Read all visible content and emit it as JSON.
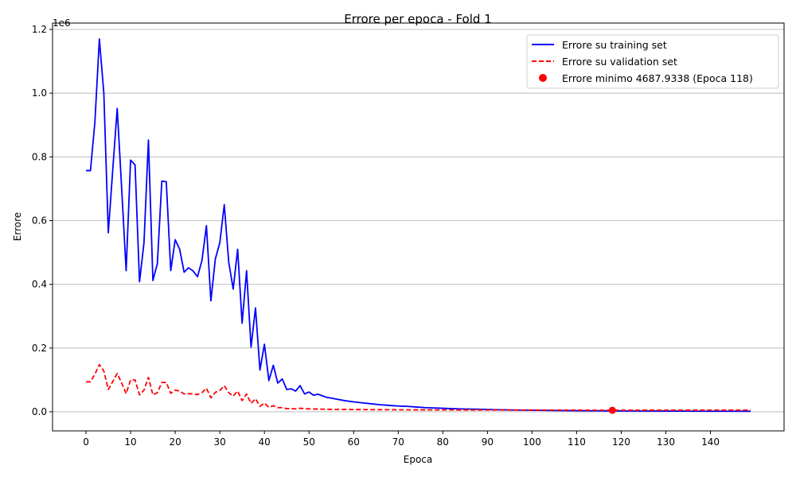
{
  "chart_data": {
    "type": "line",
    "title": "Errore per epoca - Fold 1",
    "xlabel": "Epoca",
    "ylabel": "Errore",
    "y_offset_label": "1e6",
    "xlim": [
      -7.5,
      156.5
    ],
    "ylim": [
      -0.06,
      1.22
    ],
    "y_scale_factor": 1000000,
    "x_ticks": [
      0,
      10,
      20,
      30,
      40,
      50,
      60,
      70,
      80,
      90,
      100,
      110,
      120,
      130,
      140
    ],
    "y_ticks": [
      0.0,
      0.2,
      0.4,
      0.6,
      0.8,
      1.0,
      1.2
    ],
    "y_tick_labels": [
      "0.0",
      "0.2",
      "0.4",
      "0.6",
      "0.8",
      "1.0",
      "1.2"
    ],
    "grid": "horizontal",
    "legend_position": "top-right",
    "series": [
      {
        "name": "Errore su training set",
        "color": "#0000ff",
        "style": "solid",
        "points": [
          [
            0,
            0.757
          ],
          [
            1,
            0.757
          ],
          [
            2,
            0.91
          ],
          [
            3,
            1.17
          ],
          [
            4,
            1.0
          ],
          [
            5,
            0.562
          ],
          [
            6,
            0.76
          ],
          [
            7,
            0.952
          ],
          [
            8,
            0.7
          ],
          [
            9,
            0.443
          ],
          [
            10,
            0.79
          ],
          [
            11,
            0.775
          ],
          [
            12,
            0.408
          ],
          [
            13,
            0.53
          ],
          [
            14,
            0.853
          ],
          [
            15,
            0.412
          ],
          [
            16,
            0.465
          ],
          [
            17,
            0.724
          ],
          [
            18,
            0.722
          ],
          [
            19,
            0.443
          ],
          [
            20,
            0.54
          ],
          [
            21,
            0.51
          ],
          [
            22,
            0.438
          ],
          [
            23,
            0.452
          ],
          [
            24,
            0.442
          ],
          [
            25,
            0.424
          ],
          [
            26,
            0.475
          ],
          [
            27,
            0.584
          ],
          [
            28,
            0.348
          ],
          [
            29,
            0.48
          ],
          [
            30,
            0.53
          ],
          [
            31,
            0.65
          ],
          [
            32,
            0.47
          ],
          [
            33,
            0.385
          ],
          [
            34,
            0.51
          ],
          [
            35,
            0.278
          ],
          [
            36,
            0.443
          ],
          [
            37,
            0.203
          ],
          [
            38,
            0.326
          ],
          [
            39,
            0.131
          ],
          [
            40,
            0.212
          ],
          [
            41,
            0.098
          ],
          [
            42,
            0.146
          ],
          [
            43,
            0.09
          ],
          [
            44,
            0.103
          ],
          [
            45,
            0.07
          ],
          [
            46,
            0.072
          ],
          [
            47,
            0.065
          ],
          [
            48,
            0.082
          ],
          [
            49,
            0.056
          ],
          [
            50,
            0.062
          ],
          [
            51,
            0.052
          ],
          [
            52,
            0.055
          ],
          [
            53,
            0.05
          ],
          [
            54,
            0.045
          ],
          [
            55,
            0.043
          ],
          [
            56,
            0.04
          ],
          [
            58,
            0.035
          ],
          [
            60,
            0.031
          ],
          [
            62,
            0.028
          ],
          [
            64,
            0.025
          ],
          [
            66,
            0.022
          ],
          [
            68,
            0.02
          ],
          [
            70,
            0.018
          ],
          [
            72,
            0.017
          ],
          [
            74,
            0.015
          ],
          [
            76,
            0.013
          ],
          [
            78,
            0.012
          ],
          [
            80,
            0.011
          ],
          [
            84,
            0.009
          ],
          [
            88,
            0.008
          ],
          [
            92,
            0.0065
          ],
          [
            96,
            0.0055
          ],
          [
            100,
            0.0048
          ],
          [
            105,
            0.004
          ],
          [
            110,
            0.0035
          ],
          [
            115,
            0.003
          ],
          [
            118,
            0.0028
          ],
          [
            120,
            0.0027
          ],
          [
            125,
            0.0024
          ],
          [
            130,
            0.0022
          ],
          [
            135,
            0.002
          ],
          [
            140,
            0.0018
          ],
          [
            145,
            0.0017
          ],
          [
            149,
            0.0016
          ]
        ]
      },
      {
        "name": "Errore su validation set",
        "color": "#ff0000",
        "style": "dashed",
        "points": [
          [
            0,
            0.094
          ],
          [
            1,
            0.094
          ],
          [
            2,
            0.118
          ],
          [
            3,
            0.148
          ],
          [
            4,
            0.128
          ],
          [
            5,
            0.07
          ],
          [
            6,
            0.095
          ],
          [
            7,
            0.12
          ],
          [
            8,
            0.09
          ],
          [
            9,
            0.057
          ],
          [
            10,
            0.1
          ],
          [
            11,
            0.1
          ],
          [
            12,
            0.053
          ],
          [
            13,
            0.068
          ],
          [
            14,
            0.108
          ],
          [
            15,
            0.053
          ],
          [
            16,
            0.06
          ],
          [
            17,
            0.092
          ],
          [
            18,
            0.092
          ],
          [
            19,
            0.058
          ],
          [
            20,
            0.068
          ],
          [
            21,
            0.065
          ],
          [
            22,
            0.056
          ],
          [
            23,
            0.057
          ],
          [
            24,
            0.056
          ],
          [
            25,
            0.054
          ],
          [
            26,
            0.06
          ],
          [
            27,
            0.074
          ],
          [
            28,
            0.044
          ],
          [
            29,
            0.061
          ],
          [
            30,
            0.067
          ],
          [
            31,
            0.082
          ],
          [
            32,
            0.06
          ],
          [
            33,
            0.049
          ],
          [
            34,
            0.065
          ],
          [
            35,
            0.035
          ],
          [
            36,
            0.056
          ],
          [
            37,
            0.026
          ],
          [
            38,
            0.041
          ],
          [
            39,
            0.017
          ],
          [
            40,
            0.027
          ],
          [
            41,
            0.014
          ],
          [
            42,
            0.019
          ],
          [
            43,
            0.013
          ],
          [
            44,
            0.013
          ],
          [
            45,
            0.01
          ],
          [
            46,
            0.01
          ],
          [
            47,
            0.009
          ],
          [
            48,
            0.011
          ],
          [
            50,
            0.009
          ],
          [
            55,
            0.0075
          ],
          [
            60,
            0.007
          ],
          [
            70,
            0.0062
          ],
          [
            80,
            0.0058
          ],
          [
            90,
            0.0055
          ],
          [
            100,
            0.0053
          ],
          [
            110,
            0.0051
          ],
          [
            118,
            0.0047
          ],
          [
            125,
            0.005
          ],
          [
            130,
            0.005
          ],
          [
            140,
            0.0051
          ],
          [
            149,
            0.0052
          ]
        ]
      }
    ],
    "marker": {
      "name": "Errore minimo 4687.9338 (Epoca 118)",
      "color": "#ff0000",
      "x": 118,
      "y": 0.0047
    }
  }
}
